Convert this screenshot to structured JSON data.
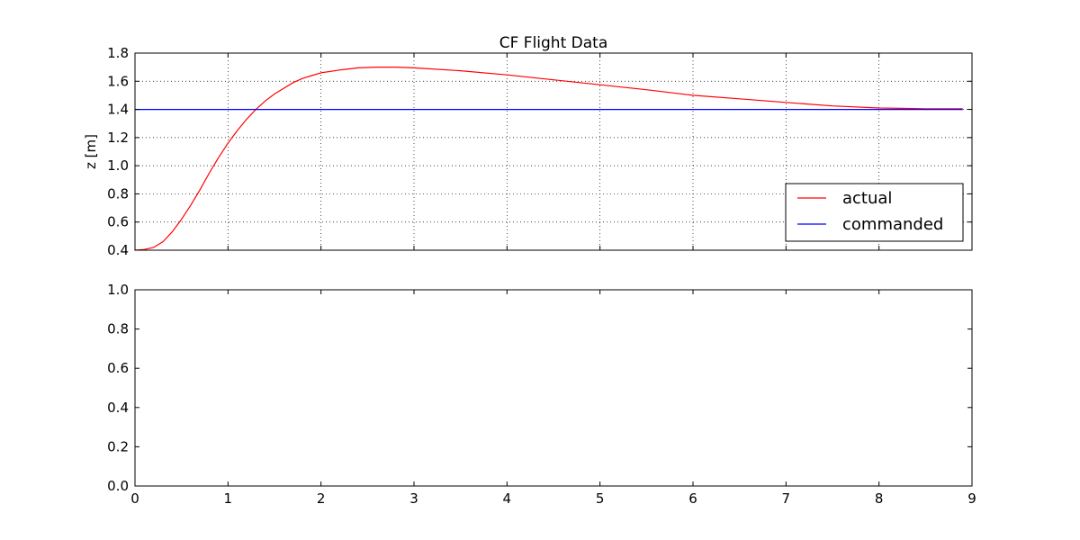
{
  "chart_data": [
    {
      "type": "line",
      "title": "CF Flight Data",
      "xlabel": "",
      "ylabel": "z [m]",
      "xlim": [
        0,
        9
      ],
      "ylim": [
        0.4,
        1.8
      ],
      "x_ticks": [
        0,
        1,
        2,
        3,
        4,
        5,
        6,
        7,
        8,
        9
      ],
      "y_ticks": [
        "0.4",
        "0.6",
        "0.8",
        "1.0",
        "1.2",
        "1.4",
        "1.6",
        "1.8"
      ],
      "grid": true,
      "x_tick_labels_visible": false,
      "legend": {
        "position": "lower-right"
      },
      "series": [
        {
          "name": "actual",
          "color": "#ff0000",
          "x": [
            0,
            0.1,
            0.2,
            0.3,
            0.4,
            0.5,
            0.6,
            0.7,
            0.8,
            0.9,
            1.0,
            1.1,
            1.2,
            1.3,
            1.4,
            1.5,
            1.6,
            1.7,
            1.8,
            1.9,
            2.0,
            2.2,
            2.4,
            2.6,
            2.8,
            3.0,
            3.5,
            4.0,
            4.5,
            5.0,
            5.5,
            6.0,
            6.5,
            7.0,
            7.5,
            8.0,
            8.5,
            8.9
          ],
          "y": [
            0.4,
            0.405,
            0.42,
            0.46,
            0.53,
            0.62,
            0.72,
            0.83,
            0.95,
            1.06,
            1.16,
            1.25,
            1.33,
            1.4,
            1.46,
            1.51,
            1.55,
            1.59,
            1.62,
            1.64,
            1.66,
            1.68,
            1.695,
            1.7,
            1.7,
            1.695,
            1.675,
            1.645,
            1.61,
            1.575,
            1.54,
            1.5,
            1.475,
            1.45,
            1.425,
            1.41,
            1.405,
            1.405
          ]
        },
        {
          "name": "commanded",
          "color": "#0000ff",
          "x": [
            0,
            8.9
          ],
          "y": [
            1.4,
            1.4
          ]
        }
      ]
    },
    {
      "type": "line",
      "title": "",
      "xlabel": "",
      "ylabel": "",
      "xlim": [
        0,
        9
      ],
      "ylim": [
        0,
        1
      ],
      "x_ticks": [
        "0",
        "1",
        "2",
        "3",
        "4",
        "5",
        "6",
        "7",
        "8",
        "9"
      ],
      "y_ticks": [
        "0.0",
        "0.2",
        "0.4",
        "0.6",
        "0.8",
        "1.0"
      ],
      "grid": false,
      "series": []
    }
  ]
}
